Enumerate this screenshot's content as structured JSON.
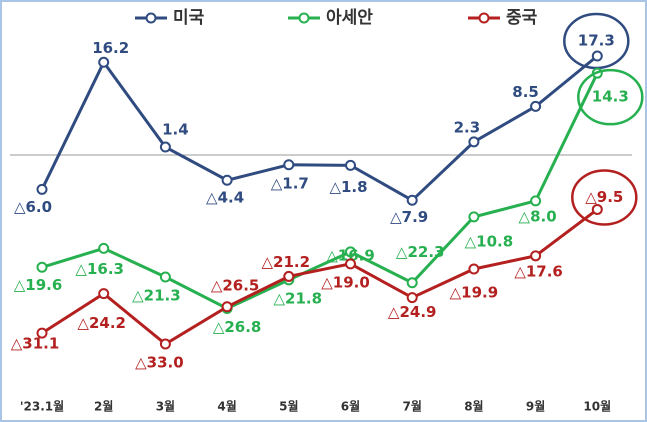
{
  "chart_data": {
    "type": "line",
    "categories": [
      "'23.1월",
      "2월",
      "3월",
      "4월",
      "5월",
      "6월",
      "7월",
      "8월",
      "9월",
      "10월"
    ],
    "series": [
      {
        "name": "미국",
        "color": "#2f4b80",
        "values": [
          -6.0,
          16.2,
          1.4,
          -4.4,
          -1.7,
          -1.8,
          -7.9,
          2.3,
          8.5,
          17.3
        ],
        "value_labels": [
          "△6.0",
          "16.2",
          "1.4",
          "△4.4",
          "△1.7",
          "△1.8",
          "△7.9",
          "2.3",
          "8.5",
          "17.3"
        ]
      },
      {
        "name": "아세안",
        "color": "#26b04f",
        "values": [
          -19.6,
          -16.3,
          -21.3,
          -26.8,
          -21.8,
          -16.9,
          -22.3,
          -10.8,
          -8.0,
          14.3
        ],
        "value_labels": [
          "△19.6",
          "△16.3",
          "△21.3",
          "△26.8",
          "△21.8",
          "△16.9",
          "△22.3",
          "△10.8",
          "△8.0",
          "14.3"
        ]
      },
      {
        "name": "중국",
        "color": "#b3201f",
        "values": [
          -31.1,
          -24.2,
          -33.0,
          -26.5,
          -21.2,
          -19.0,
          -24.9,
          -19.9,
          -17.6,
          -9.5
        ],
        "value_labels": [
          "△31.1",
          "△24.2",
          "△33.0",
          "△26.5",
          "△21.2",
          "△19.0",
          "△24.9",
          "△19.9",
          "△17.6",
          "△9.5"
        ]
      }
    ]
  }
}
